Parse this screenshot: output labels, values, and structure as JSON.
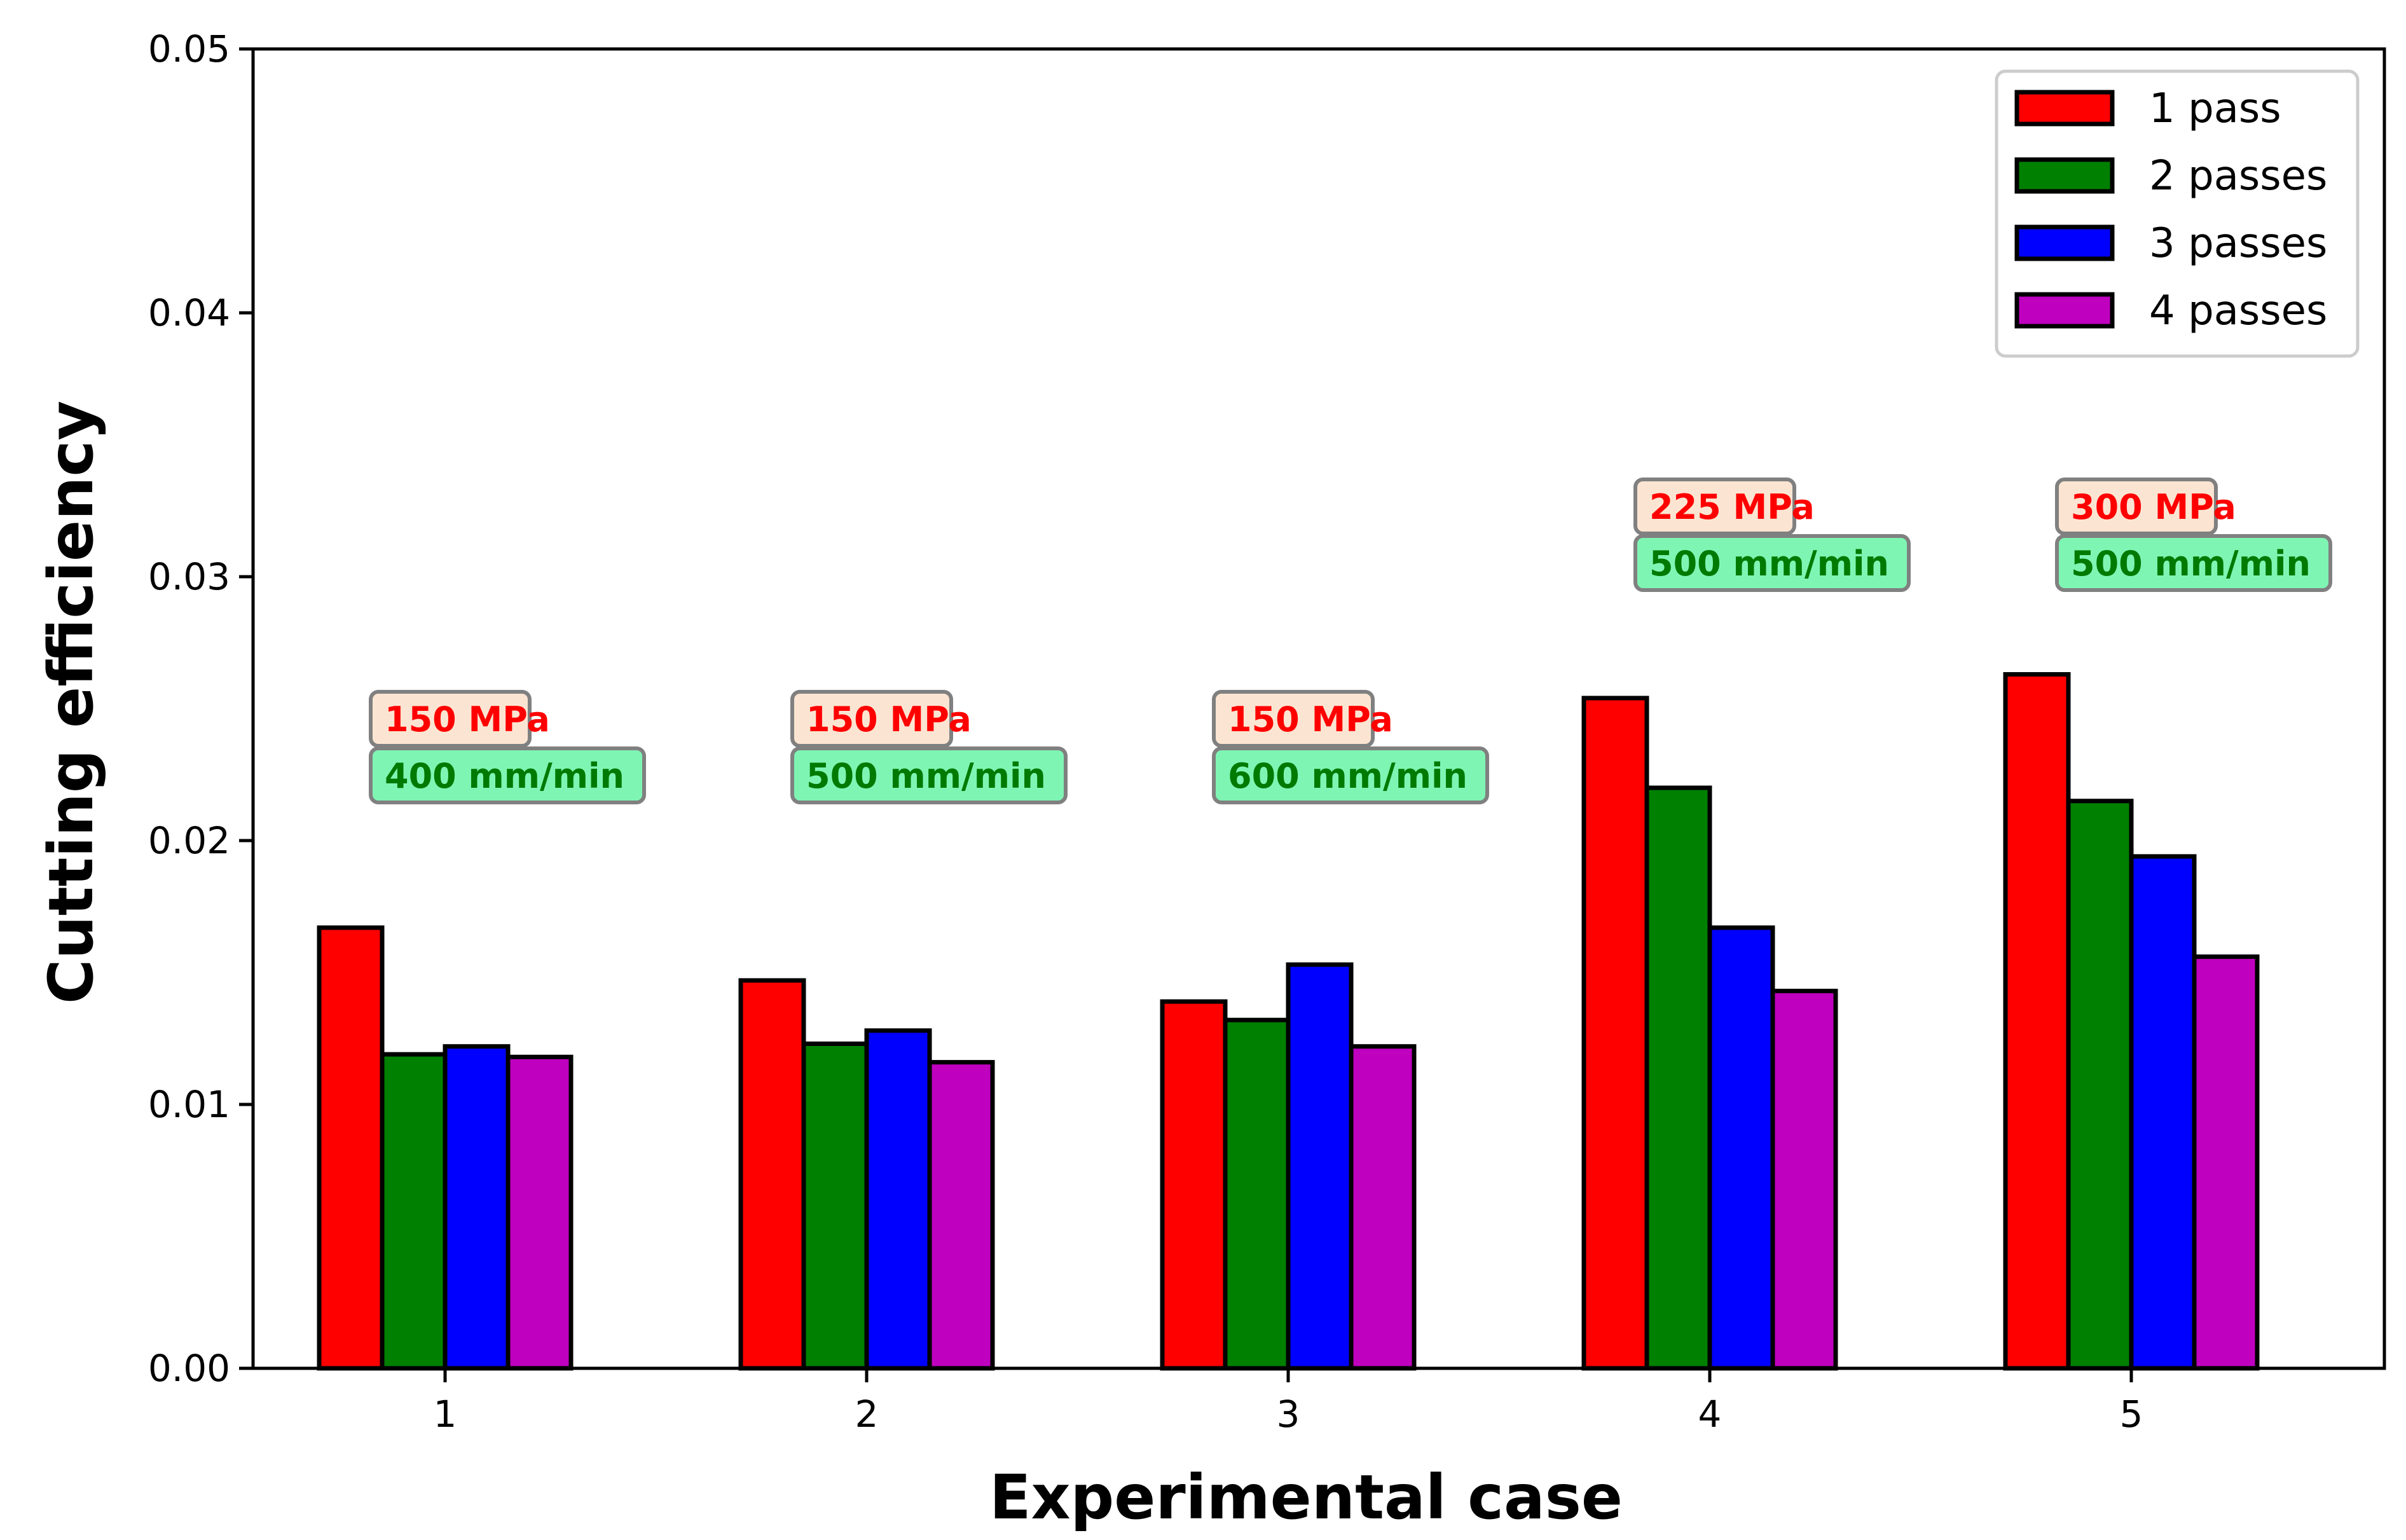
{
  "chart_data": {
    "type": "bar",
    "title": "",
    "xlabel": "Experimental case",
    "ylabel": "Cutting efficiency",
    "categories": [
      "1",
      "2",
      "3",
      "4",
      "5"
    ],
    "ylim": [
      0,
      0.05
    ],
    "yticks": [
      0.0,
      0.01,
      0.02,
      0.03,
      0.04,
      0.05
    ],
    "ytick_labels": [
      "0.00",
      "0.01",
      "0.02",
      "0.03",
      "0.04",
      "0.05"
    ],
    "grid": false,
    "legend_position": "top-right",
    "series": [
      {
        "name": "1 pass",
        "color": "#ff0000",
        "values": [
          0.0167,
          0.0147,
          0.0139,
          0.0254,
          0.0263
        ]
      },
      {
        "name": "2 passes",
        "color": "#008000",
        "values": [
          0.0119,
          0.0123,
          0.0132,
          0.022,
          0.0215
        ]
      },
      {
        "name": "3 passes",
        "color": "#0000ff",
        "values": [
          0.0122,
          0.0128,
          0.0153,
          0.0167,
          0.0194
        ]
      },
      {
        "name": "4 passes",
        "color": "#bf00bf",
        "values": [
          0.0118,
          0.0116,
          0.0122,
          0.0143,
          0.0156
        ]
      }
    ],
    "annotations": [
      {
        "case": "1",
        "pressure": "150 MPa",
        "feed": "400 mm/min"
      },
      {
        "case": "2",
        "pressure": "150 MPa",
        "feed": "500 mm/min"
      },
      {
        "case": "3",
        "pressure": "150 MPa",
        "feed": "600 mm/min"
      },
      {
        "case": "4",
        "pressure": "225 MPa",
        "feed": "500 mm/min"
      },
      {
        "case": "5",
        "pressure": "300 MPa",
        "feed": "500 mm/min"
      }
    ],
    "annotation_colors": {
      "pressure_text": "#ff0000",
      "pressure_box": "#fbe5d2",
      "feed_text": "#007a00",
      "feed_box": "#7ff5b4"
    }
  }
}
